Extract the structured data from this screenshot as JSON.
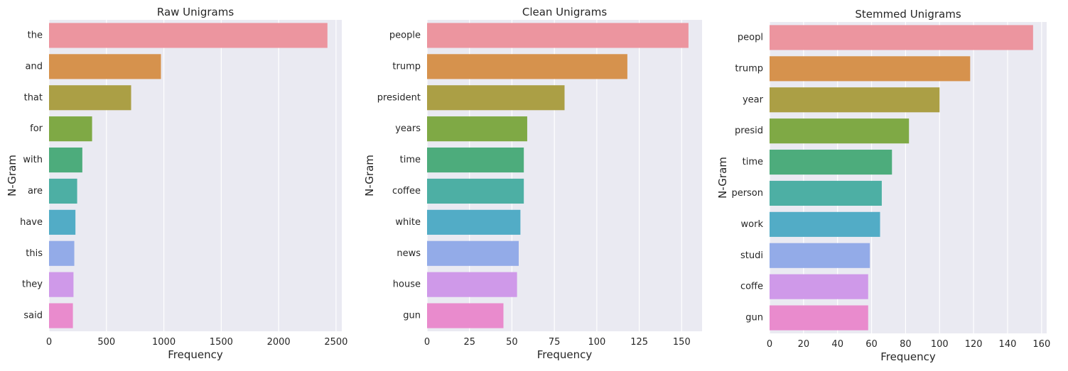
{
  "chart_data": [
    {
      "type": "bar",
      "orientation": "horizontal",
      "title": "Raw Unigrams",
      "xlabel": "Frequency",
      "ylabel": "N-Gram",
      "categories": [
        "the",
        "and",
        "that",
        "for",
        "with",
        "are",
        "have",
        "this",
        "they",
        "said"
      ],
      "values": [
        2425,
        975,
        715,
        375,
        290,
        245,
        230,
        220,
        213,
        208
      ],
      "xlim": [
        0,
        2550
      ],
      "xticks": [
        0,
        500,
        1000,
        1500,
        2000,
        2500
      ],
      "grid": true
    },
    {
      "type": "bar",
      "orientation": "horizontal",
      "title": "Clean Unigrams",
      "xlabel": "Frequency",
      "ylabel": "N-Gram",
      "categories": [
        "people",
        "trump",
        "president",
        "years",
        "time",
        "coffee",
        "white",
        "news",
        "house",
        "gun"
      ],
      "values": [
        154,
        118,
        81,
        59,
        57,
        57,
        55,
        54,
        53,
        45
      ],
      "xlim": [
        0,
        162
      ],
      "xticks": [
        0,
        25,
        50,
        75,
        100,
        125,
        150
      ],
      "grid": true
    },
    {
      "type": "bar",
      "orientation": "horizontal",
      "title": "Stemmed Unigrams",
      "xlabel": "Frequency",
      "ylabel": "N-Gram",
      "categories": [
        "peopl",
        "trump",
        "year",
        "presid",
        "time",
        "person",
        "work",
        "studi",
        "coffe",
        "gun"
      ],
      "values": [
        155,
        118,
        100,
        82,
        72,
        66,
        65,
        59,
        58,
        58
      ],
      "xlim": [
        0,
        163
      ],
      "xticks": [
        0,
        20,
        40,
        60,
        80,
        100,
        120,
        140,
        160
      ],
      "grid": true
    }
  ],
  "palette": [
    "#ec959f",
    "#d6924d",
    "#ab9f45",
    "#7fa945",
    "#4dac7c",
    "#4dafa4",
    "#52acc6",
    "#93abe8",
    "#cf99e9",
    "#e98bcd"
  ]
}
